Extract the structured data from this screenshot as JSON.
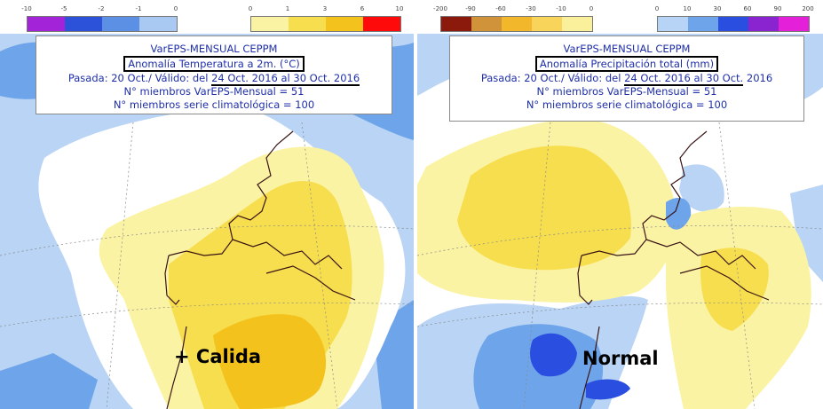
{
  "left_panel": {
    "legend": {
      "cool_ticks": [
        "-10",
        "-5",
        "-2",
        "-1",
        "0"
      ],
      "cool_colors": [
        "#a323d8",
        "#2b52d8",
        "#5b90e4",
        "#a9c8f2"
      ],
      "warm_ticks": [
        "0",
        "1",
        "3",
        "6",
        "10"
      ],
      "warm_colors": [
        "#fbf3a4",
        "#f7de4e",
        "#f4c21c",
        "#ff0a0a"
      ]
    },
    "title": "VarEPS-MENSUAL CEPPM",
    "subtitle": "Anomalía Temperatura a 2m. (°C)",
    "period_prefix": "Pasada: 20 Oct./ Válido: del",
    "period_dates": "24 Oct. 2016 al 30 Oct. 2016",
    "members": "N° miembros VarEPS-Mensual = 51",
    "climatology": "N° miembros serie climatológica = 100",
    "verdict": "+ Calida"
  },
  "right_panel": {
    "legend": {
      "dry_ticks": [
        "-200",
        "-90",
        "-60",
        "-30",
        "-10",
        "0"
      ],
      "dry_colors": [
        "#8c1a0c",
        "#d0933a",
        "#f2b72a",
        "#f8d55a",
        "#faf09c"
      ],
      "wet_ticks": [
        "0",
        "10",
        "30",
        "60",
        "90",
        "200"
      ],
      "wet_colors": [
        "#b7d3f5",
        "#6ea5ea",
        "#2a4fe0",
        "#8a24d0",
        "#e420d8"
      ]
    },
    "title": "VarEPS-MENSUAL CEPPM",
    "subtitle": "Anomalía Precipitación total (mm)",
    "period_prefix": "Pasada: 20 Oct./ Válido: del",
    "period_dates": "24 Oct. 2016 al 30 Oct.",
    "period_suffix": "2016",
    "members": "N° miembros VarEPS-Mensual = 51",
    "climatology": "N° miembros serie climatológica = 100",
    "verdict": "Normal"
  },
  "colors": {
    "sea_neutral": "#ffffff",
    "light_blue": "#b9d4f4",
    "mid_blue": "#6ea5ea",
    "deep_blue": "#2a4fe0",
    "pale_yellow": "#fbf3a4",
    "yellow": "#f7de4e",
    "orange": "#f4c21c",
    "coast": "#3a1414",
    "text_blue": "#1f2fa8"
  }
}
